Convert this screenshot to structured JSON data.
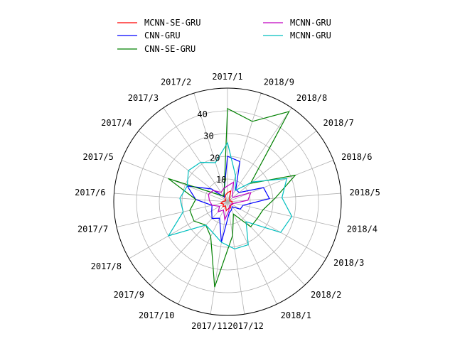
{
  "chart_data": {
    "type": "radar",
    "theta_labels": [
      "2017/1",
      "2018/9",
      "2018/8",
      "2018/7",
      "2018/6",
      "2018/5",
      "2018/4",
      "2018/3",
      "2018/2",
      "2018/1",
      "2017/12",
      "2017/11",
      "2017/10",
      "2017/9",
      "2017/8",
      "2017/7",
      "2017/6",
      "2017/5",
      "2017/4",
      "2017/3",
      "2017/2"
    ],
    "r_ticks": [
      10,
      20,
      30,
      40
    ],
    "r_max": 50,
    "grid": true,
    "legend_position": "top",
    "series": [
      {
        "name": "MCNN-SE-GRU",
        "color": "#ff0000",
        "values": [
          4,
          5,
          1.5,
          1.5,
          1,
          2,
          2,
          2.5,
          2,
          3,
          3,
          4,
          2,
          3,
          2,
          3,
          2,
          1,
          1,
          2,
          3
        ]
      },
      {
        "name": "CNN-GRU",
        "color": "#0000ff",
        "values": [
          20,
          18.5,
          6.5,
          6.5,
          17,
          18.5,
          7,
          6.5,
          3,
          4,
          5,
          18,
          8,
          10,
          8,
          7,
          14,
          19,
          9,
          2.5,
          5
        ]
      },
      {
        "name": "CNN-SE-GRU",
        "color": "#008000",
        "values": [
          41,
          37,
          48,
          13,
          32,
          21,
          16,
          15,
          15,
          6,
          15,
          38,
          17,
          14,
          17,
          17,
          14,
          28,
          5,
          3,
          5
        ]
      },
      {
        "name": "MCNN-GRU",
        "color": "#c000c0",
        "values": [
          7,
          9,
          4,
          3,
          11,
          9,
          3,
          2,
          2,
          2,
          4,
          8,
          4,
          6,
          4,
          7,
          8,
          9,
          8,
          5,
          6
        ]
      },
      {
        "name": "MCNN-GRU",
        "color": "#00bfbf",
        "values": [
          26,
          12,
          6,
          14,
          28,
          24,
          29,
          27,
          12,
          21,
          21,
          18,
          15,
          14,
          30,
          20,
          21,
          19,
          22,
          21,
          18
        ]
      }
    ]
  }
}
